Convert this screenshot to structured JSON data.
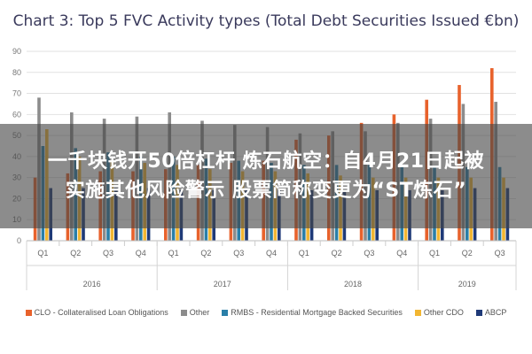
{
  "chart_data": {
    "type": "bar",
    "title": "Chart 3: Top 5 FVC Activity types (Total Debt Securities Issued €bn)",
    "quarters": [
      "Q1",
      "Q2",
      "Q3",
      "Q4",
      "Q1",
      "Q2",
      "Q3",
      "Q4",
      "Q1",
      "Q2",
      "Q3",
      "Q4",
      "Q1",
      "Q2",
      "Q3"
    ],
    "years": [
      {
        "label": "2016",
        "start": 0,
        "end": 3
      },
      {
        "label": "2017",
        "start": 4,
        "end": 7
      },
      {
        "label": "2018",
        "start": 8,
        "end": 11
      },
      {
        "label": "2019",
        "start": 12,
        "end": 14
      }
    ],
    "ylim": [
      0,
      90
    ],
    "yticks": [
      0,
      10,
      20,
      30,
      40,
      50,
      60,
      70,
      80,
      90
    ],
    "series": [
      {
        "name": "CLO - Collateralised Loan Obligations",
        "color": "#e8622c",
        "values": [
          30,
          32,
          33,
          33,
          34,
          36,
          37,
          38,
          48,
          50,
          56,
          60,
          67,
          74,
          82
        ]
      },
      {
        "name": "Other",
        "color": "#8c8c8c",
        "values": [
          68,
          61,
          58,
          59,
          61,
          57,
          55,
          54,
          51,
          52,
          52,
          56,
          58,
          65,
          66
        ]
      },
      {
        "name": "RMBS - Residential Mortgage Backed Securities",
        "color": "#2a7fa8",
        "values": [
          45,
          44,
          42,
          40,
          40,
          39,
          38,
          37,
          36,
          36,
          36,
          35,
          35,
          35,
          35
        ]
      },
      {
        "name": "Other CDO",
        "color": "#f2b632",
        "values": [
          53,
          40,
          38,
          37,
          36,
          34,
          33,
          33,
          32,
          31,
          30,
          30,
          30,
          30,
          30
        ]
      },
      {
        "name": "ABCP",
        "color": "#1f3a78",
        "values": [
          25,
          25,
          25,
          25,
          24,
          24,
          24,
          24,
          24,
          24,
          24,
          24,
          24,
          25,
          25
        ]
      }
    ]
  },
  "overlay": {
    "line1": "一千块钱开50倍杠杆 炼石航空：自4月21日起被",
    "line2": "实施其他风险警示 股票简称变更为“ST炼石”"
  }
}
